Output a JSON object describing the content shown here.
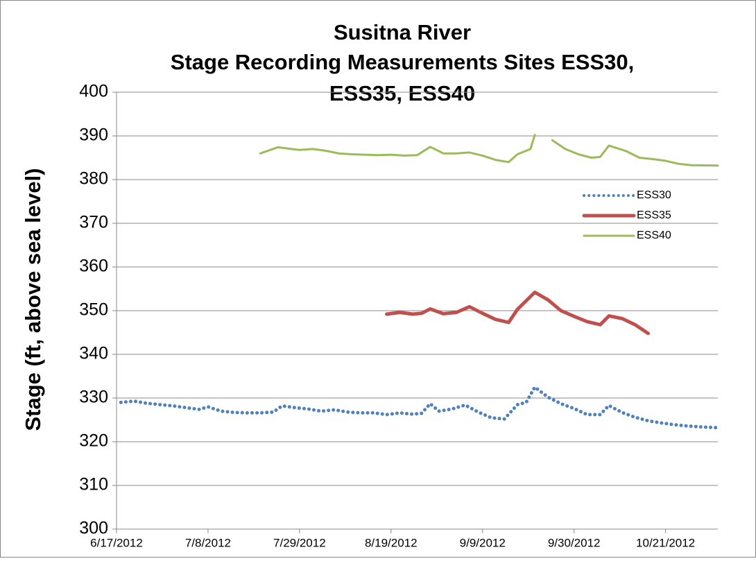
{
  "chart_data": {
    "type": "line",
    "title": [
      "Susitna River",
      "Stage Recording Measurements Sites ESS30,",
      "ESS35, ESS40"
    ],
    "y_label": "Stage (ft, above sea level)",
    "xlim": [
      "6/17/2012",
      "11/2/2012"
    ],
    "xticks": [
      "6/17/2012",
      "7/8/2012",
      "7/29/2012",
      "8/19/2012",
      "9/9/2012",
      "9/30/2012",
      "10/21/2012"
    ],
    "ylim": [
      300,
      400
    ],
    "yticks": [
      300,
      310,
      320,
      330,
      340,
      350,
      360,
      370,
      380,
      390,
      400
    ],
    "grid": true,
    "legend": "upper right",
    "series": [
      {
        "name": "ESS30",
        "color": "#4f81bd",
        "style": "dotted",
        "x": [
          "6/18/2012",
          "6/21/2012",
          "6/24/2012",
          "6/27/2012",
          "6/30/2012",
          "7/3/2012",
          "7/6/2012",
          "7/8/2012",
          "7/11/2012",
          "7/14/2012",
          "7/17/2012",
          "7/20/2012",
          "7/23/2012",
          "7/25/2012",
          "7/28/2012",
          "7/31/2012",
          "8/3/2012",
          "8/6/2012",
          "8/9/2012",
          "8/12/2012",
          "8/15/2012",
          "8/18/2012",
          "8/21/2012",
          "8/24/2012",
          "8/26/2012",
          "8/28/2012",
          "8/30/2012",
          "9/2/2012",
          "9/5/2012",
          "9/8/2012",
          "9/11/2012",
          "9/14/2012",
          "9/17/2012",
          "9/19/2012",
          "9/21/2012",
          "9/24/2012",
          "9/27/2012",
          "9/30/2012",
          "10/3/2012",
          "10/6/2012",
          "10/8/2012",
          "10/11/2012",
          "10/14/2012",
          "10/17/2012",
          "10/20/2012",
          "10/23/2012",
          "10/26/2012",
          "10/29/2012",
          "11/2/2012"
        ],
        "values": [
          329,
          329.3,
          328.8,
          328.5,
          328.2,
          327.8,
          327.4,
          328,
          327,
          326.7,
          326.6,
          326.6,
          326.8,
          328.2,
          327.8,
          327.5,
          327,
          327.3,
          326.8,
          326.6,
          326.6,
          326.2,
          326.6,
          326.3,
          326.5,
          328.7,
          327,
          327.5,
          328.4,
          326.8,
          325.5,
          325.2,
          328.5,
          329,
          332.5,
          330.2,
          328.7,
          327.6,
          326.2,
          326.2,
          328.3,
          326.7,
          325.6,
          324.8,
          324.3,
          323.9,
          323.6,
          323.4,
          323.2
        ]
      },
      {
        "name": "ESS35",
        "color": "#c0504d",
        "style": "solid",
        "x": [
          "8/18/2012",
          "8/21/2012",
          "8/24/2012",
          "8/26/2012",
          "8/28/2012",
          "8/31/2012",
          "9/3/2012",
          "9/6/2012",
          "9/9/2012",
          "9/12/2012",
          "9/15/2012",
          "9/17/2012",
          "9/21/2012",
          "9/24/2012",
          "9/27/2012",
          "9/30/2012",
          "10/3/2012",
          "10/6/2012",
          "10/8/2012",
          "10/11/2012",
          "10/14/2012",
          "10/17/2012"
        ],
        "values": [
          349.2,
          349.6,
          349.2,
          349.4,
          350.4,
          349.3,
          349.6,
          350.9,
          349.4,
          348,
          347.3,
          350.3,
          354.2,
          352.5,
          350,
          348.7,
          347.5,
          346.8,
          348.8,
          348.2,
          346.8,
          344.8
        ]
      },
      {
        "name": "ESS40",
        "color": "#9bbb59",
        "style": "solid",
        "x": [
          "7/20/2012",
          "7/24/2012",
          "7/29/2012",
          "8/1/2012",
          "8/4/2012",
          "8/7/2012",
          "8/10/2012",
          "8/13/2012",
          "8/16/2012",
          "8/19/2012",
          "8/22/2012",
          "8/25/2012",
          "8/28/2012",
          "8/31/2012",
          "9/3/2012",
          "9/6/2012",
          "9/9/2012",
          "9/12/2012",
          "9/15/2012",
          "9/17/2012",
          "9/20/2012",
          "9/21/2012",
          "9/23/2012",
          "9/25/2012",
          "9/28/2012",
          "10/1/2012",
          "10/4/2012",
          "10/6/2012",
          "10/8/2012",
          "10/12/2012",
          "10/15/2012",
          "10/18/2012",
          "10/21/2012",
          "10/24/2012",
          "10/27/2012",
          "11/2/2012"
        ],
        "values": [
          386,
          387.4,
          386.8,
          387,
          386.6,
          386,
          385.8,
          385.7,
          385.6,
          385.7,
          385.5,
          385.6,
          387.5,
          386,
          386,
          386.2,
          385.5,
          384.5,
          384,
          385.8,
          387,
          390.2,
          null,
          389,
          387,
          385.8,
          385,
          385.2,
          387.8,
          386.5,
          385,
          384.7,
          384.3,
          383.6,
          383.3,
          383.2
        ]
      }
    ]
  }
}
